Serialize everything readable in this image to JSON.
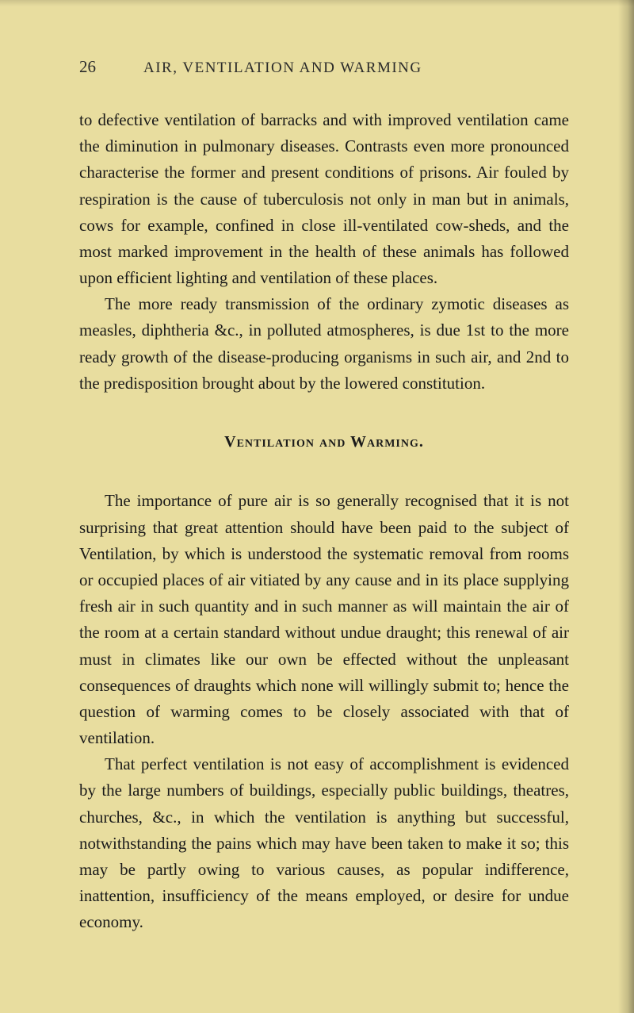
{
  "page": {
    "number": "26",
    "running_title": "AIR, VENTILATION AND WARMING"
  },
  "paragraphs": {
    "p1": "to defective ventilation of barracks and with improved ventilation came the diminution in pulmonary diseases. Contrasts even more pronounced characterise the former and present conditions of prisons. Air fouled by respiration is the cause of tuberculosis not only in man but in animals, cows for example, confined in close ill-ventilated cow-sheds, and the most marked improvement in the health of these animals has followed upon efficient lighting and ventilation of these places.",
    "p2": "The more ready transmission of the ordinary zymotic diseases as measles, diphtheria &c., in polluted atmospheres, is due 1st to the more ready growth of the disease-producing organisms in such air, and 2nd to the predisposition brought about by the lowered constitution.",
    "heading": "Ventilation and Warming.",
    "p3": "The importance of pure air is so generally recognised that it is not surprising that great attention should have been paid to the subject of Ventilation, by which is understood the systematic removal from rooms or occupied places of air vitiated by any cause and in its place supplying fresh air in such quantity and in such manner as will maintain the air of the room at a certain standard without undue draught; this renewal of air must in climates like our own be effected without the unpleasant consequences of draughts which none will willingly submit to; hence the question of warming comes to be closely associated with that of ventilation.",
    "p4": "That perfect ventilation is not easy of accomplishment is evidenced by the large numbers of buildings, especially public buildings, theatres, churches, &c., in which the ventilation is anything but successful, notwithstanding the pains which may have been taken to make it so; this may be partly owing to various causes, as popular indifference, inattention, insufficiency of the means employed, or desire for undue economy."
  },
  "colors": {
    "background": "#e8dd9f",
    "text": "#1a1a1a",
    "header_text": "#2a2a2a"
  }
}
